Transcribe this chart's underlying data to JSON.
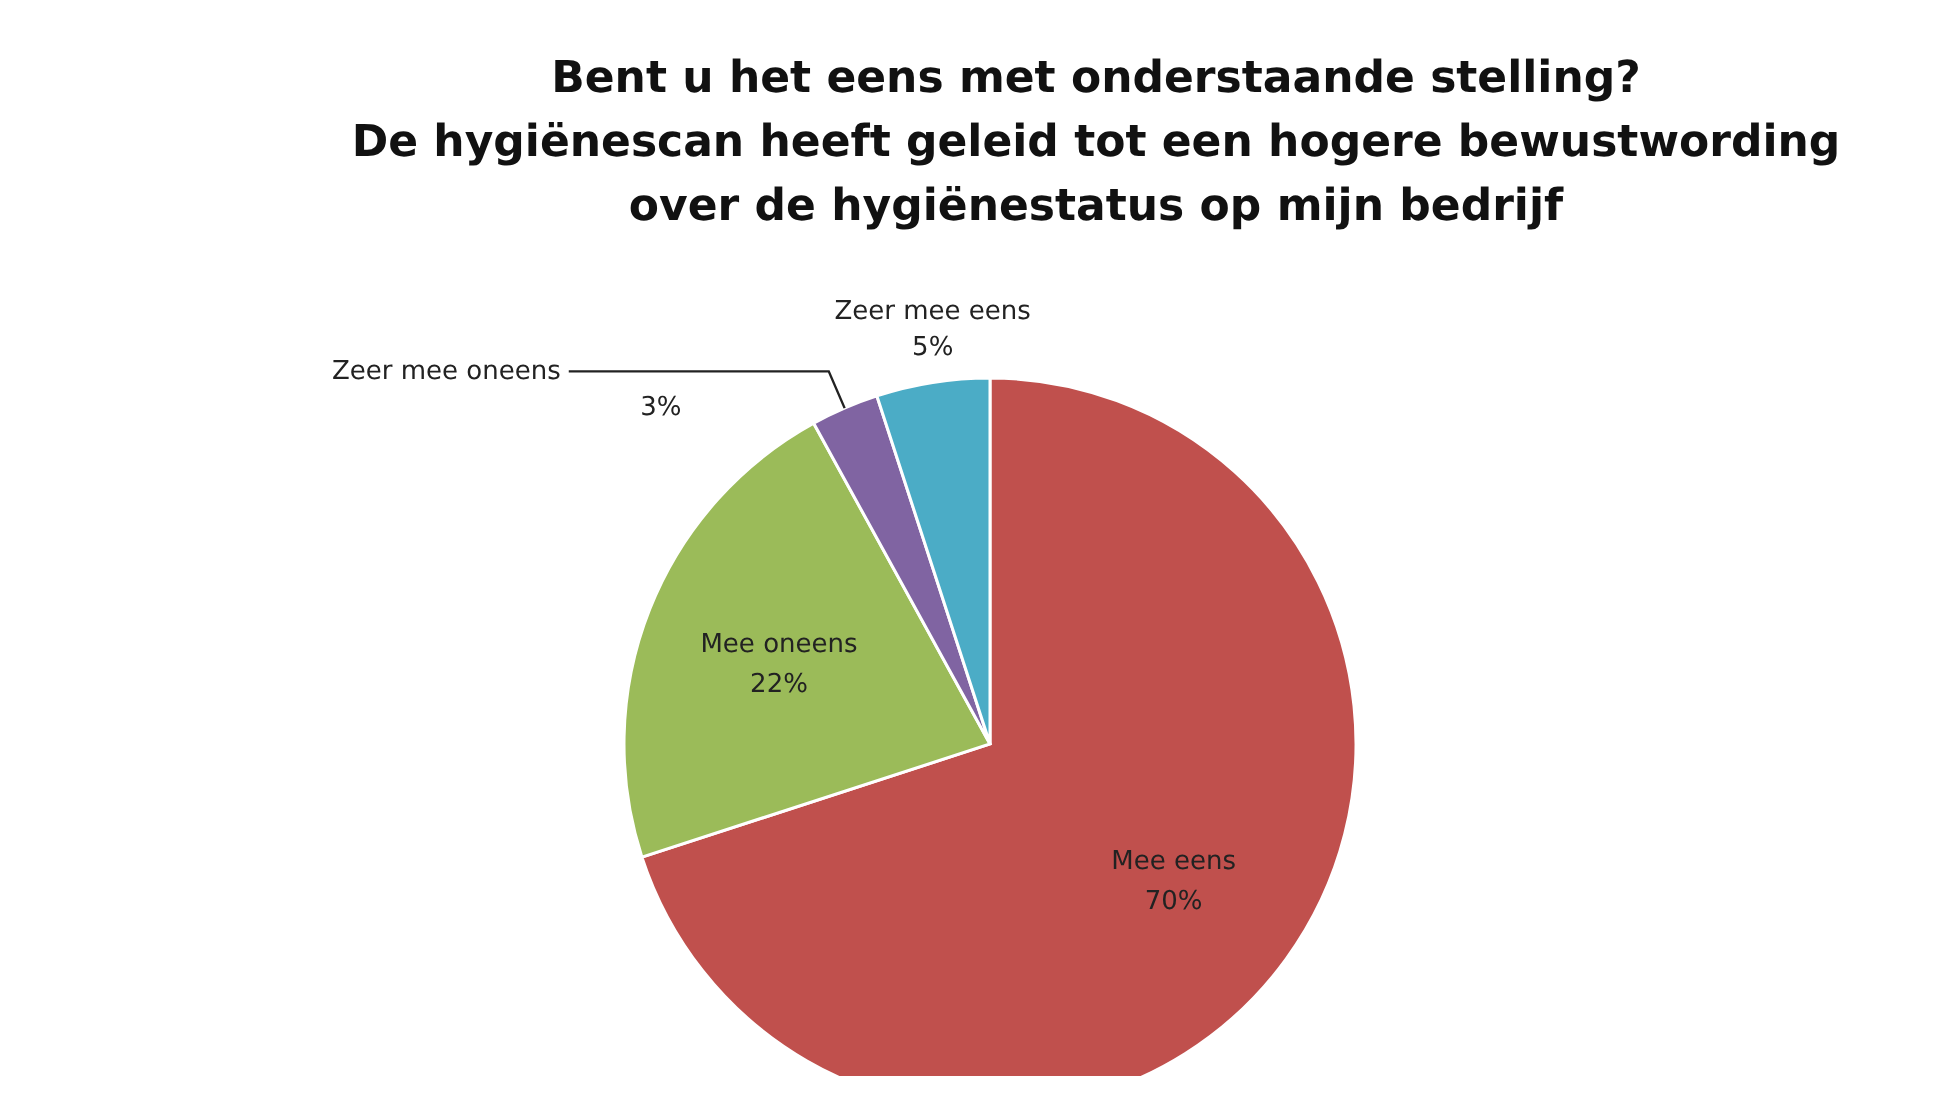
{
  "chart_data": {
    "type": "pie",
    "title": "Bent u het eens met onderstaande  stelling?\nDe hygiënescan heeft geleid tot een hogere bewustwording\nover de hygiënestatus op mijn bedrijf",
    "categories": [
      "Mee eens",
      "Mee oneens",
      "Zeer mee oneens",
      "Zeer mee eens"
    ],
    "values": [
      70,
      22,
      3,
      5
    ],
    "colors": [
      "#c0504d",
      "#9bbb59",
      "#8064a2",
      "#4bacc6"
    ],
    "value_labels": [
      "70%",
      "22%",
      "3%",
      "5%"
    ]
  }
}
